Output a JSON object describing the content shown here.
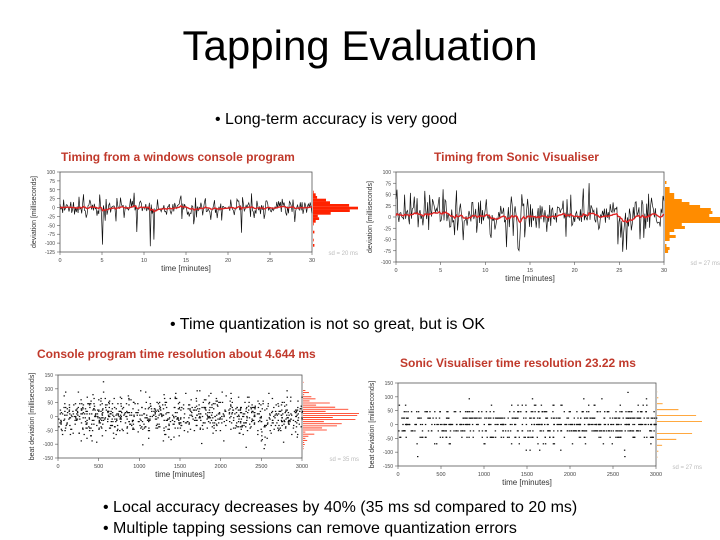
{
  "title": "Tapping Evaluation",
  "bullets": {
    "b1": "• Long-term accuracy is very good",
    "b2": "• Time quantization is not so great, but is OK",
    "b3": "• Local accuracy decreases by 40% (35 ms sd compared to 20 ms)",
    "b4": "• Multiple tapping sessions can remove quantization errors"
  },
  "captions": {
    "c1": "Timing from a windows console program",
    "c2": "Timing from Sonic Visualiser",
    "c3": "Console program time resolution about 4.644 ms",
    "c4": "Sonic Visualiser time resolution 23.22 ms"
  },
  "colors": {
    "caption": "#c0392b",
    "red_hist": "#ff2200",
    "orange_hist": "#ff8c00",
    "trace": "#111111",
    "trend": "#dd2222"
  },
  "chart_data": [
    {
      "type": "line",
      "xlabel": "time [minutes]",
      "ylabel": "deviation [milliseconds]",
      "xticks": [
        "0",
        "5",
        "10",
        "15",
        "20",
        "25",
        "30"
      ],
      "yticks": [
        "100",
        "75",
        "50",
        "25",
        "0",
        "-25",
        "-50",
        "-75",
        "-100",
        "-125"
      ],
      "xlim": [
        0,
        30
      ],
      "ylim": [
        -125,
        100
      ],
      "series": [
        {
          "values": []
        },
        {
          "values": []
        }
      ],
      "histogram": "red",
      "stat_text": "sd = 20 ms"
    },
    {
      "type": "line",
      "xlabel": "time [minutes]",
      "ylabel": "deviation [milliseconds]",
      "xticks": [
        "0",
        "5",
        "10",
        "15",
        "20",
        "25",
        "30"
      ],
      "yticks": [
        "100",
        "75",
        "50",
        "25",
        "0",
        "-25",
        "-50",
        "-75",
        "-100"
      ],
      "xlim": [
        0,
        30
      ],
      "ylim": [
        -100,
        100
      ],
      "series": [
        {
          "values": []
        },
        {
          "values": []
        }
      ],
      "histogram": "orange",
      "stat_text": "sd = 27 ms"
    },
    {
      "type": "scatter",
      "xlabel": "time [minutes]",
      "ylabel": "beat deviation [milliseconds]",
      "xticks": [
        "0",
        "500",
        "1000",
        "1500",
        "2000",
        "2500",
        "3000"
      ],
      "yticks": [
        "150",
        "100",
        "50",
        "0",
        "-50",
        "-100",
        "-150"
      ],
      "xlim": [
        0,
        3000
      ],
      "ylim": [
        -150,
        150
      ],
      "quantization": "fine",
      "histogram": "red",
      "stat_text": "sd = 35 ms"
    },
    {
      "type": "scatter",
      "xlabel": "time [minutes]",
      "ylabel": "beat deviation [milliseconds]",
      "xticks": [
        "0",
        "500",
        "1000",
        "1500",
        "2000",
        "2500",
        "3000"
      ],
      "yticks": [
        "150",
        "100",
        "50",
        "0",
        "-50",
        "-100",
        "-150"
      ],
      "xlim": [
        0,
        3000
      ],
      "ylim": [
        -150,
        150
      ],
      "quantization": "coarse",
      "histogram": "orange",
      "stat_text": "sd = 27 ms"
    }
  ]
}
